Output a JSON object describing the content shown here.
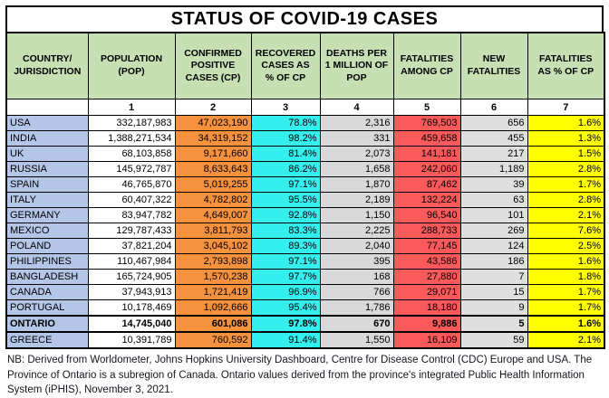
{
  "title": "STATUS OF COVID-19 CASES",
  "colors": {
    "header_green": "#C6E0B4",
    "country_blue": "#B4C6E7",
    "population_white": "#FFFFFF",
    "confirmed_orange": "#F6913E",
    "recovered_cyan": "#35EEEE",
    "deaths_gray": "#D9D9D9",
    "fatalities_red": "#FB5A5A",
    "new_fatalities_gray": "#DFDFDF",
    "fatality_pct_yellow": "#FFFF00",
    "border_black": "#000000"
  },
  "table": {
    "columns": [
      {
        "key": "country",
        "number": "",
        "label": "COUNTRY/\nJURISDICTION",
        "bg": "#B4C6E7",
        "align": "left"
      },
      {
        "key": "population",
        "number": "1",
        "label": "POPULATION\n(POP)",
        "bg": "#FFFFFF",
        "align": "right"
      },
      {
        "key": "cp",
        "number": "2",
        "label": "CONFIRMED\nPOSITIVE\nCASES (CP)",
        "bg": "#F6913E",
        "align": "right"
      },
      {
        "key": "recovered_pct",
        "number": "3",
        "label": "RECOVERED\nCASES AS\n% OF CP",
        "bg": "#35EEEE",
        "align": "right"
      },
      {
        "key": "deaths_per_million",
        "number": "4",
        "label": "DEATHS PER\n1 MILLION OF\nPOP",
        "bg": "#D9D9D9",
        "align": "right"
      },
      {
        "key": "fatalities",
        "number": "5",
        "label": "FATALITIES\nAMONG CP",
        "bg": "#FB5A5A",
        "align": "right"
      },
      {
        "key": "new_fatalities",
        "number": "6",
        "label": "NEW\nFATALITIES",
        "bg": "#DFDFDF",
        "align": "right"
      },
      {
        "key": "fatality_pct",
        "number": "7",
        "label": "FATALITIES\nAS % OF CP",
        "bg": "#FFFF00",
        "align": "right"
      }
    ],
    "rows": [
      {
        "country": "USA",
        "population": "332,187,983",
        "cp": "47,023,190",
        "recovered_pct": "78.8%",
        "deaths_per_million": "2,316",
        "fatalities": "769,503",
        "new_fatalities": "656",
        "fatality_pct": "1.6%",
        "bold": false
      },
      {
        "country": "INDIA",
        "population": "1,388,271,534",
        "cp": "34,319,152",
        "recovered_pct": "98.2%",
        "deaths_per_million": "331",
        "fatalities": "459,658",
        "new_fatalities": "455",
        "fatality_pct": "1.3%",
        "bold": false
      },
      {
        "country": "UK",
        "population": "68,103,858",
        "cp": "9,171,660",
        "recovered_pct": "81.4%",
        "deaths_per_million": "2,073",
        "fatalities": "141,181",
        "new_fatalities": "217",
        "fatality_pct": "1.5%",
        "bold": false
      },
      {
        "country": "RUSSIA",
        "population": "145,972,787",
        "cp": "8,633,643",
        "recovered_pct": "86.2%",
        "deaths_per_million": "1,658",
        "fatalities": "242,060",
        "new_fatalities": "1,189",
        "fatality_pct": "2.8%",
        "bold": false
      },
      {
        "country": "SPAIN",
        "population": "46,765,870",
        "cp": "5,019,255",
        "recovered_pct": "97.1%",
        "deaths_per_million": "1,870",
        "fatalities": "87,462",
        "new_fatalities": "39",
        "fatality_pct": "1.7%",
        "bold": false
      },
      {
        "country": "ITALY",
        "population": "60,407,322",
        "cp": "4,782,802",
        "recovered_pct": "95.5%",
        "deaths_per_million": "2,189",
        "fatalities": "132,224",
        "new_fatalities": "63",
        "fatality_pct": "2.8%",
        "bold": false
      },
      {
        "country": "GERMANY",
        "population": "83,947,782",
        "cp": "4,649,007",
        "recovered_pct": "92.8%",
        "deaths_per_million": "1,150",
        "fatalities": "96,540",
        "new_fatalities": "101",
        "fatality_pct": "2.1%",
        "bold": false
      },
      {
        "country": "MEXICO",
        "population": "129,787,433",
        "cp": "3,811,793",
        "recovered_pct": "83.3%",
        "deaths_per_million": "2,225",
        "fatalities": "288,733",
        "new_fatalities": "269",
        "fatality_pct": "7.6%",
        "bold": false
      },
      {
        "country": "POLAND",
        "population": "37,821,204",
        "cp": "3,045,102",
        "recovered_pct": "89.3%",
        "deaths_per_million": "2,040",
        "fatalities": "77,145",
        "new_fatalities": "124",
        "fatality_pct": "2.5%",
        "bold": false
      },
      {
        "country": "PHILIPPINES",
        "population": "110,467,984",
        "cp": "2,793,898",
        "recovered_pct": "97.1%",
        "deaths_per_million": "395",
        "fatalities": "43,586",
        "new_fatalities": "186",
        "fatality_pct": "1.6%",
        "bold": false
      },
      {
        "country": "BANGLADESH",
        "population": "165,724,905",
        "cp": "1,570,238",
        "recovered_pct": "97.7%",
        "deaths_per_million": "168",
        "fatalities": "27,880",
        "new_fatalities": "7",
        "fatality_pct": "1.8%",
        "bold": false
      },
      {
        "country": "CANADA",
        "population": "37,943,913",
        "cp": "1,721,419",
        "recovered_pct": "96.9%",
        "deaths_per_million": "766",
        "fatalities": "29,071",
        "new_fatalities": "15",
        "fatality_pct": "1.7%",
        "bold": false
      },
      {
        "country": "PORTUGAL",
        "population": "10,178,469",
        "cp": "1,092,666",
        "recovered_pct": "95.4%",
        "deaths_per_million": "1,786",
        "fatalities": "18,180",
        "new_fatalities": "9",
        "fatality_pct": "1.7%",
        "bold": false
      },
      {
        "country": "ONTARIO",
        "population": "14,745,040",
        "cp": "601,086",
        "recovered_pct": "97.8%",
        "deaths_per_million": "670",
        "fatalities": "9,886",
        "new_fatalities": "5",
        "fatality_pct": "1.6%",
        "bold": true
      },
      {
        "country": "GREECE",
        "population": "10,391,789",
        "cp": "760,592",
        "recovered_pct": "91.4%",
        "deaths_per_million": "1,550",
        "fatalities": "16,109",
        "new_fatalities": "59",
        "fatality_pct": "2.1%",
        "bold": false
      }
    ]
  },
  "footer_note": "NB: Derived from Worldometer, Johns Hopkins University Dashboard, Centre for Disease Control (CDC) Europe and USA. The Province of Ontario is a subregion of Canada. Ontario values derived from the province's integrated Public Health Information System (iPHIS), November 3, 2021."
}
